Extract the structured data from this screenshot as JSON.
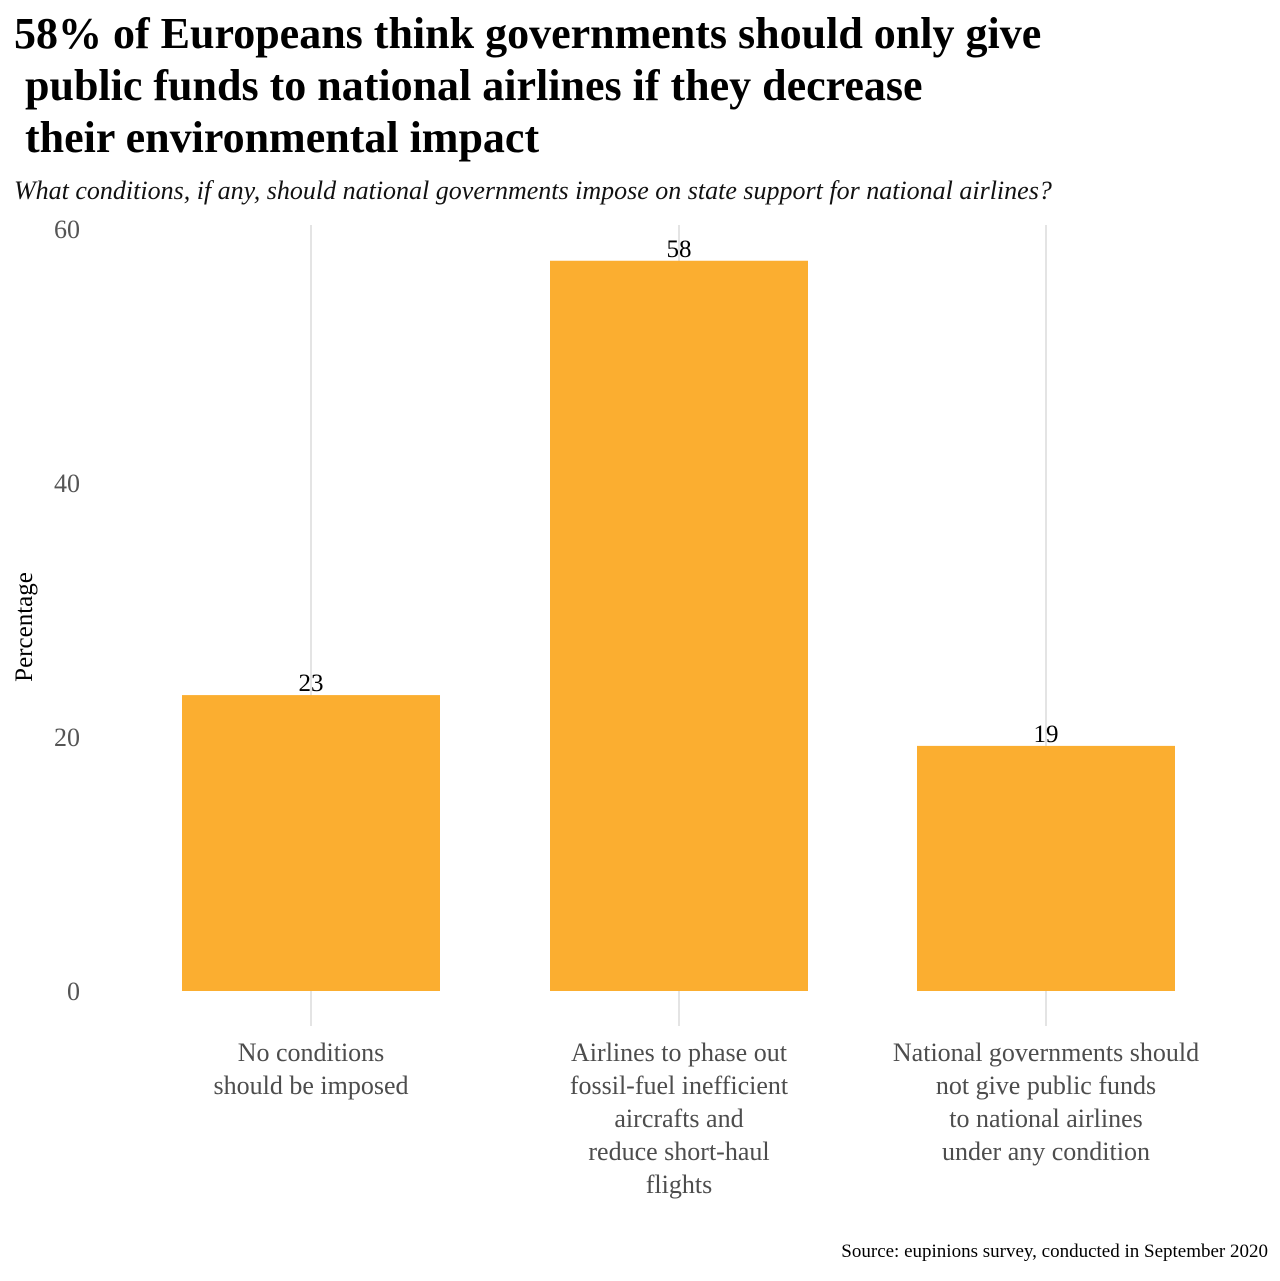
{
  "chart_data": {
    "type": "bar",
    "title": "58% of Europeans think governments should only give public funds to national airlines if they decrease their environmental impact",
    "title_lines": [
      "58% of Europeans think governments should only give",
      " public funds to national airlines if they decrease",
      " their environmental impact"
    ],
    "subtitle": "What conditions, if any, should national governments impose on state support for national airlines?",
    "xlabel": "",
    "ylabel": "Percentage",
    "caption": "Source: eupinions survey, conducted in September 2020",
    "categories": [
      "No conditions should be imposed",
      "Airlines to phase out fossil-fuel inefficient aircrafts and reduce short-haul flights",
      "National governments should not give public funds to national airlines under any condition"
    ],
    "category_lines": [
      [
        "No conditions",
        "should be imposed"
      ],
      [
        "Airlines to phase out",
        "fossil-fuel inefficient",
        "aircrafts and",
        "reduce short-haul",
        "flights"
      ],
      [
        "National governments should",
        "not give public funds",
        "to national airlines",
        "under any condition"
      ]
    ],
    "values": [
      23.3,
      57.5,
      19.3
    ],
    "value_labels": [
      "23",
      "58",
      "19"
    ],
    "ylim": [
      0,
      60
    ],
    "yticks": [
      0,
      20,
      40,
      60
    ],
    "bar_color": "#fbae30",
    "grid": true,
    "legend": "none"
  }
}
